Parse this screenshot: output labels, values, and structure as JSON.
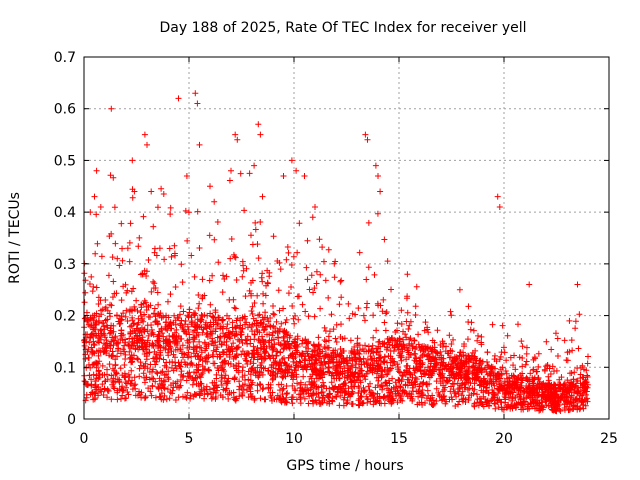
{
  "chart_data": {
    "type": "scatter",
    "title": "Day 188 of 2025, Rate Of TEC Index for receiver yell",
    "xlabel": "GPS time / hours",
    "ylabel": "ROTI / TECUs",
    "xlim": [
      0,
      25
    ],
    "ylim": [
      0,
      0.7
    ],
    "x_ticks": [
      0,
      5,
      10,
      15,
      20,
      25
    ],
    "x_tick_labels": [
      "0",
      "5",
      "10",
      "15",
      "20",
      "25"
    ],
    "y_ticks": [
      0,
      0.1,
      0.2,
      0.3,
      0.4,
      0.5,
      0.6,
      0.7
    ],
    "y_tick_labels": [
      "0",
      "0.1",
      "0.2",
      "0.3",
      "0.4",
      "0.5",
      "0.6",
      "0.7"
    ],
    "grid": true,
    "marker": "+",
    "series": [
      {
        "name": "ROTI",
        "color": "#ff0000",
        "envelope_hours": [
          0,
          1,
          2,
          3,
          4,
          5,
          6,
          7,
          8,
          9,
          10,
          11,
          12,
          13,
          14,
          15,
          16,
          17,
          18,
          19,
          20,
          21,
          22,
          23,
          24
        ],
        "envelope_typical": [
          0.12,
          0.13,
          0.13,
          0.14,
          0.12,
          0.13,
          0.12,
          0.12,
          0.12,
          0.11,
          0.1,
          0.09,
          0.08,
          0.08,
          0.09,
          0.1,
          0.09,
          0.08,
          0.08,
          0.07,
          0.05,
          0.05,
          0.04,
          0.04,
          0.05
        ],
        "envelope_upper": [
          0.42,
          0.46,
          0.5,
          0.55,
          0.45,
          0.47,
          0.42,
          0.48,
          0.52,
          0.42,
          0.48,
          0.42,
          0.33,
          0.38,
          0.4,
          0.3,
          0.25,
          0.22,
          0.25,
          0.22,
          0.2,
          0.18,
          0.17,
          0.18,
          0.26
        ],
        "points": [
          [
            0.3,
            0.4
          ],
          [
            0.5,
            0.43
          ],
          [
            0.6,
            0.48
          ],
          [
            0.8,
            0.41
          ],
          [
            1.3,
            0.6
          ],
          [
            2.3,
            0.5
          ],
          [
            2.4,
            0.44
          ],
          [
            2.9,
            0.55
          ],
          [
            3.0,
            0.53
          ],
          [
            3.2,
            0.44
          ],
          [
            4.5,
            0.62
          ],
          [
            4.9,
            0.47
          ],
          [
            5.3,
            0.63
          ],
          [
            5.4,
            0.61
          ],
          [
            5.5,
            0.53
          ],
          [
            6.0,
            0.45
          ],
          [
            6.2,
            0.42
          ],
          [
            7.0,
            0.48
          ],
          [
            7.2,
            0.55
          ],
          [
            7.3,
            0.54
          ],
          [
            8.1,
            0.49
          ],
          [
            8.3,
            0.57
          ],
          [
            8.4,
            0.55
          ],
          [
            8.5,
            0.43
          ],
          [
            9.5,
            0.47
          ],
          [
            9.9,
            0.5
          ],
          [
            10.1,
            0.48
          ],
          [
            10.5,
            0.47
          ],
          [
            11.0,
            0.41
          ],
          [
            13.4,
            0.55
          ],
          [
            13.5,
            0.54
          ],
          [
            13.9,
            0.49
          ],
          [
            14.0,
            0.47
          ],
          [
            14.1,
            0.44
          ],
          [
            15.4,
            0.28
          ],
          [
            17.9,
            0.25
          ],
          [
            19.7,
            0.43
          ],
          [
            19.8,
            0.41
          ],
          [
            21.2,
            0.26
          ],
          [
            23.5,
            0.26
          ]
        ]
      }
    ]
  }
}
